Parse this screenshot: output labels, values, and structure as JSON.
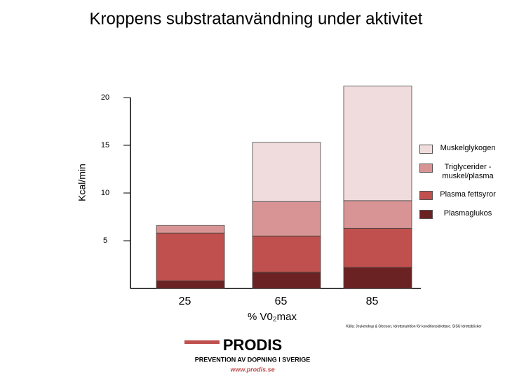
{
  "chart_data": {
    "type": "stacked_bar",
    "title": "Kroppens substratanvändning under aktivitet",
    "y_label": "Kcal/min",
    "x_label": "% V0₂max",
    "categories": [
      "25",
      "65",
      "85"
    ],
    "series": [
      {
        "name": "Muskelglykogen",
        "color": "#f0dcdc",
        "values": [
          0,
          6.2,
          12.0
        ]
      },
      {
        "name": "Triglycerider - muskel/plasma",
        "color": "#d89494",
        "values": [
          0.8,
          3.6,
          2.9
        ]
      },
      {
        "name": "Plasma fettsyror",
        "color": "#c0504d",
        "values": [
          5.0,
          3.8,
          4.1
        ]
      },
      {
        "name": "Plasmaglukos",
        "color": "#6b2222",
        "values": [
          0.8,
          1.7,
          2.2
        ]
      }
    ],
    "ylim": [
      0,
      20
    ],
    "yticks": [
      5,
      10,
      15,
      20
    ],
    "source": "Källa: Jeukendrup & Gleeson, Idrottsnutrition för konditionsidrottare. SISU Idrottsböcker",
    "footer": {
      "logo": "PRODIS",
      "tagline": "PREVENTION AV DOPNING I SVERIGE",
      "url": "www.prodis.se"
    }
  }
}
